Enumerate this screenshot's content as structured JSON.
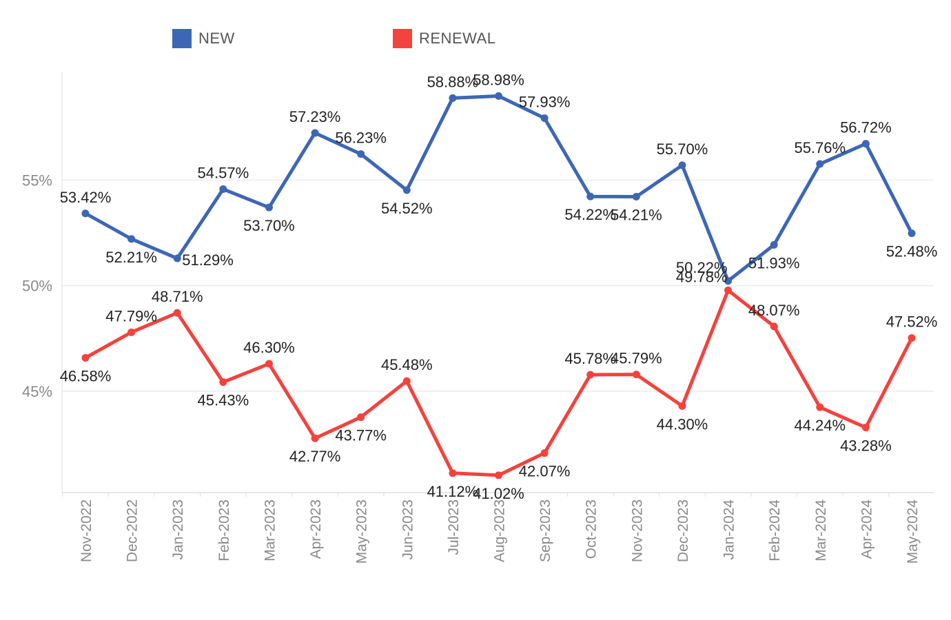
{
  "legend": {
    "new_label": "NEW",
    "renewal_label": "RENEWAL"
  },
  "colors": {
    "new": "#3d67b5",
    "renewal": "#f4423d",
    "grid": "#ececec",
    "axis": "#dddddd"
  },
  "chart_data": {
    "type": "line",
    "title": "",
    "xlabel": "",
    "ylabel": "",
    "categories": [
      "Nov-2022",
      "Dec-2022",
      "Jan-2023",
      "Feb-2023",
      "Mar-2023",
      "Apr-2023",
      "May-2023",
      "Jun-2023",
      "Jul-2023",
      "Aug-2023",
      "Sep-2023",
      "Oct-2023",
      "Nov-2023",
      "Dec-2023",
      "Jan-2024",
      "Feb-2024",
      "Mar-2024",
      "Apr-2024",
      "May-2024"
    ],
    "ylim": [
      40.2,
      60.1
    ],
    "yticks": [
      {
        "value": 45,
        "label": "45%"
      },
      {
        "value": 50,
        "label": "50%"
      },
      {
        "value": 55,
        "label": "55%"
      }
    ],
    "grid": "horizontal",
    "legend_position": "top",
    "series": [
      {
        "name": "NEW",
        "color_key": "new",
        "values": [
          53.42,
          52.21,
          51.29,
          54.57,
          53.7,
          57.23,
          56.23,
          54.52,
          58.88,
          58.98,
          57.93,
          54.22,
          54.21,
          55.7,
          50.22,
          51.93,
          55.76,
          56.72,
          52.48
        ],
        "labels": [
          "53.42%",
          "52.21%",
          "51.29%",
          "54.57%",
          "53.70%",
          "57.23%",
          "56.23%",
          "54.52%",
          "58.88%",
          "58.98%",
          "57.93%",
          "54.22%",
          "54.21%",
          "55.70%",
          "50.22%",
          "51.93%",
          "55.76%",
          "56.72%",
          "52.48%"
        ]
      },
      {
        "name": "RENEWAL",
        "color_key": "renewal",
        "values": [
          46.58,
          47.79,
          48.71,
          45.43,
          46.3,
          42.77,
          43.77,
          45.48,
          41.12,
          41.02,
          42.07,
          45.78,
          45.79,
          44.3,
          49.78,
          48.07,
          44.24,
          43.28,
          47.52
        ],
        "labels": [
          "46.58%",
          "47.79%",
          "48.71%",
          "45.43%",
          "46.30%",
          "42.77%",
          "43.77%",
          "45.48%",
          "41.12%",
          "41.02%",
          "42.07%",
          "45.78%",
          "45.79%",
          "44.30%",
          "49.78%",
          "48.07%",
          "44.24%",
          "43.28%",
          "47.52%"
        ]
      }
    ]
  }
}
